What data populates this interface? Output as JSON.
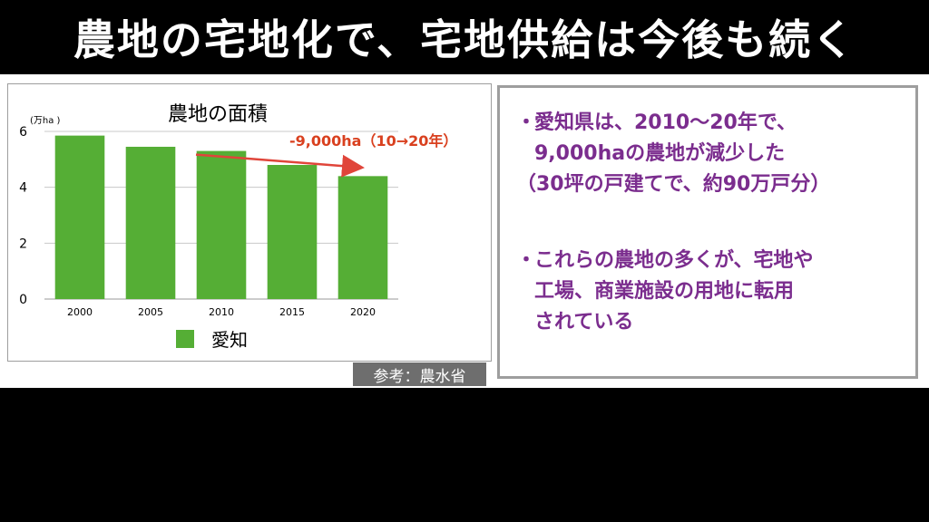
{
  "title": "農地の宅地化で、宅地供給は今後も続く",
  "colors": {
    "bar": "#55ae35",
    "arrow": "#e0453a",
    "annotation": "#d9401f",
    "text_purple": "#7b2d8e",
    "grid": "#c8c8c8"
  },
  "chart_data": {
    "type": "bar",
    "title": "農地の面積",
    "unit_label": "(万ha )",
    "categories": [
      "2000",
      "2005",
      "2010",
      "2015",
      "2020"
    ],
    "series": [
      {
        "name": "愛知",
        "values": [
          5.85,
          5.45,
          5.3,
          4.8,
          4.4
        ]
      }
    ],
    "yticks": [
      "0",
      "2",
      "4",
      "6"
    ],
    "ylim": [
      0,
      6
    ],
    "grid": true,
    "legend_position": "bottom",
    "annotation": "-9,000ha（10→20年）"
  },
  "source": "参考：農水省",
  "bullets": [
    {
      "lines": [
        "愛知県は、2010〜20年で、",
        "9,000haの農地が減少した",
        "（30坪の戸建てで、約90万戸分）"
      ]
    },
    {
      "lines": [
        "これらの農地の多くが、宅地や",
        "工場、商業施設の用地に転用",
        "されている"
      ]
    }
  ],
  "bullet_symbol": "・"
}
